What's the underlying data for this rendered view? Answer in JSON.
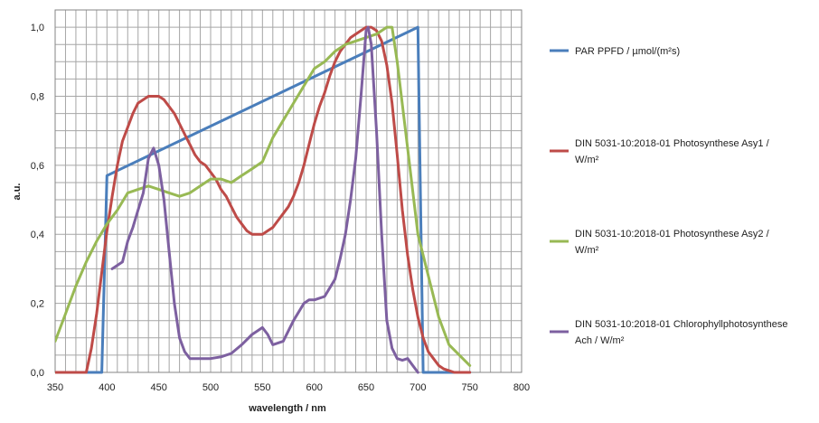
{
  "chart_data": {
    "type": "line",
    "title": "",
    "xlabel": "wavelength / nm",
    "ylabel": "a.u.",
    "xlim": [
      350,
      800
    ],
    "ylim": [
      0,
      1.05
    ],
    "x_ticks": [
      350,
      400,
      450,
      500,
      550,
      600,
      650,
      700,
      750,
      800
    ],
    "y_ticks": [
      {
        "value": 0,
        "label": "0,0"
      },
      {
        "value": 0.2,
        "label": "0,2"
      },
      {
        "value": 0.4,
        "label": "0,4"
      },
      {
        "value": 0.6,
        "label": "0,6"
      },
      {
        "value": 0.8,
        "label": "0,8"
      },
      {
        "value": 1.0,
        "label": "1,0"
      }
    ],
    "grid": true,
    "legend_position": "right",
    "series": [
      {
        "name": "PAR PPFD / µmol/(m²s)",
        "legend_lines": [
          "PAR PPFD / µmol/(m²s)"
        ],
        "color": "#4a7ebb",
        "points": [
          [
            350,
            0
          ],
          [
            395,
            0
          ],
          [
            400,
            0.57
          ],
          [
            700,
            1.0
          ],
          [
            705,
            0
          ],
          [
            750,
            0
          ]
        ]
      },
      {
        "name": "DIN 5031-10:2018-01 Photosynthese Asy1 / W/m²",
        "legend_lines": [
          "DIN 5031-10:2018-01 Photosynthese Asy1 /",
          "W/m²"
        ],
        "color": "#be4b48",
        "points": [
          [
            350,
            0
          ],
          [
            380,
            0
          ],
          [
            385,
            0.07
          ],
          [
            390,
            0.17
          ],
          [
            395,
            0.29
          ],
          [
            400,
            0.41
          ],
          [
            405,
            0.51
          ],
          [
            410,
            0.6
          ],
          [
            415,
            0.67
          ],
          [
            420,
            0.71
          ],
          [
            425,
            0.75
          ],
          [
            430,
            0.78
          ],
          [
            435,
            0.79
          ],
          [
            440,
            0.8
          ],
          [
            445,
            0.8
          ],
          [
            450,
            0.8
          ],
          [
            455,
            0.79
          ],
          [
            460,
            0.77
          ],
          [
            465,
            0.75
          ],
          [
            470,
            0.72
          ],
          [
            475,
            0.69
          ],
          [
            480,
            0.66
          ],
          [
            485,
            0.63
          ],
          [
            490,
            0.61
          ],
          [
            495,
            0.6
          ],
          [
            500,
            0.58
          ],
          [
            505,
            0.56
          ],
          [
            510,
            0.53
          ],
          [
            515,
            0.51
          ],
          [
            520,
            0.48
          ],
          [
            525,
            0.45
          ],
          [
            530,
            0.43
          ],
          [
            535,
            0.41
          ],
          [
            540,
            0.4
          ],
          [
            545,
            0.4
          ],
          [
            550,
            0.4
          ],
          [
            555,
            0.41
          ],
          [
            560,
            0.42
          ],
          [
            565,
            0.44
          ],
          [
            570,
            0.46
          ],
          [
            575,
            0.48
          ],
          [
            580,
            0.51
          ],
          [
            585,
            0.55
          ],
          [
            590,
            0.6
          ],
          [
            595,
            0.66
          ],
          [
            600,
            0.72
          ],
          [
            605,
            0.77
          ],
          [
            610,
            0.81
          ],
          [
            615,
            0.86
          ],
          [
            620,
            0.9
          ],
          [
            625,
            0.93
          ],
          [
            630,
            0.95
          ],
          [
            635,
            0.97
          ],
          [
            640,
            0.98
          ],
          [
            645,
            0.99
          ],
          [
            650,
            1.0
          ],
          [
            655,
            1.0
          ],
          [
            660,
            0.99
          ],
          [
            665,
            0.96
          ],
          [
            670,
            0.89
          ],
          [
            675,
            0.78
          ],
          [
            680,
            0.63
          ],
          [
            685,
            0.47
          ],
          [
            690,
            0.34
          ],
          [
            695,
            0.24
          ],
          [
            700,
            0.16
          ],
          [
            705,
            0.1
          ],
          [
            710,
            0.06
          ],
          [
            715,
            0.04
          ],
          [
            720,
            0.02
          ],
          [
            725,
            0.01
          ],
          [
            730,
            0.005
          ],
          [
            735,
            0
          ],
          [
            750,
            0
          ]
        ]
      },
      {
        "name": "DIN 5031-10:2018-01 Photosynthese Asy2 / W/m²",
        "legend_lines": [
          "DIN 5031-10:2018-01 Photosynthese Asy2 /",
          "W/m²"
        ],
        "color": "#98b954",
        "points": [
          [
            350,
            0.09
          ],
          [
            360,
            0.17
          ],
          [
            370,
            0.25
          ],
          [
            380,
            0.32
          ],
          [
            390,
            0.38
          ],
          [
            400,
            0.43
          ],
          [
            410,
            0.47
          ],
          [
            420,
            0.52
          ],
          [
            430,
            0.53
          ],
          [
            440,
            0.54
          ],
          [
            450,
            0.53
          ],
          [
            460,
            0.52
          ],
          [
            470,
            0.51
          ],
          [
            480,
            0.52
          ],
          [
            490,
            0.54
          ],
          [
            500,
            0.56
          ],
          [
            510,
            0.56
          ],
          [
            520,
            0.55
          ],
          [
            530,
            0.57
          ],
          [
            540,
            0.59
          ],
          [
            550,
            0.61
          ],
          [
            560,
            0.68
          ],
          [
            570,
            0.73
          ],
          [
            580,
            0.78
          ],
          [
            590,
            0.83
          ],
          [
            600,
            0.88
          ],
          [
            610,
            0.9
          ],
          [
            620,
            0.93
          ],
          [
            630,
            0.95
          ],
          [
            640,
            0.96
          ],
          [
            650,
            0.97
          ],
          [
            660,
            0.98
          ],
          [
            670,
            1.0
          ],
          [
            675,
            1.0
          ],
          [
            680,
            0.9
          ],
          [
            690,
            0.65
          ],
          [
            700,
            0.4
          ],
          [
            710,
            0.28
          ],
          [
            720,
            0.16
          ],
          [
            730,
            0.08
          ],
          [
            740,
            0.05
          ],
          [
            750,
            0.02
          ]
        ]
      },
      {
        "name": "DIN 5031-10:2018-01 Chlorophyllphotosynthese Ach / W/m²",
        "legend_lines": [
          "DIN 5031-10:2018-01 Chlorophyllphotosynthese",
          "Ach / W/m²"
        ],
        "color": "#7d60a0",
        "points": [
          [
            405,
            0.3
          ],
          [
            415,
            0.32
          ],
          [
            420,
            0.38
          ],
          [
            425,
            0.42
          ],
          [
            430,
            0.47
          ],
          [
            435,
            0.52
          ],
          [
            440,
            0.62
          ],
          [
            445,
            0.65
          ],
          [
            450,
            0.6
          ],
          [
            455,
            0.5
          ],
          [
            460,
            0.35
          ],
          [
            465,
            0.2
          ],
          [
            470,
            0.1
          ],
          [
            475,
            0.06
          ],
          [
            480,
            0.04
          ],
          [
            490,
            0.04
          ],
          [
            500,
            0.04
          ],
          [
            510,
            0.045
          ],
          [
            520,
            0.055
          ],
          [
            530,
            0.08
          ],
          [
            540,
            0.11
          ],
          [
            545,
            0.12
          ],
          [
            550,
            0.13
          ],
          [
            555,
            0.11
          ],
          [
            560,
            0.08
          ],
          [
            570,
            0.09
          ],
          [
            580,
            0.15
          ],
          [
            590,
            0.2
          ],
          [
            595,
            0.21
          ],
          [
            600,
            0.21
          ],
          [
            610,
            0.22
          ],
          [
            620,
            0.27
          ],
          [
            625,
            0.33
          ],
          [
            630,
            0.4
          ],
          [
            635,
            0.5
          ],
          [
            640,
            0.62
          ],
          [
            645,
            0.8
          ],
          [
            650,
            0.99
          ],
          [
            652,
            1.0
          ],
          [
            655,
            0.95
          ],
          [
            660,
            0.7
          ],
          [
            665,
            0.4
          ],
          [
            670,
            0.15
          ],
          [
            675,
            0.07
          ],
          [
            680,
            0.04
          ],
          [
            685,
            0.035
          ],
          [
            690,
            0.04
          ],
          [
            695,
            0.02
          ],
          [
            700,
            0
          ]
        ]
      }
    ]
  }
}
